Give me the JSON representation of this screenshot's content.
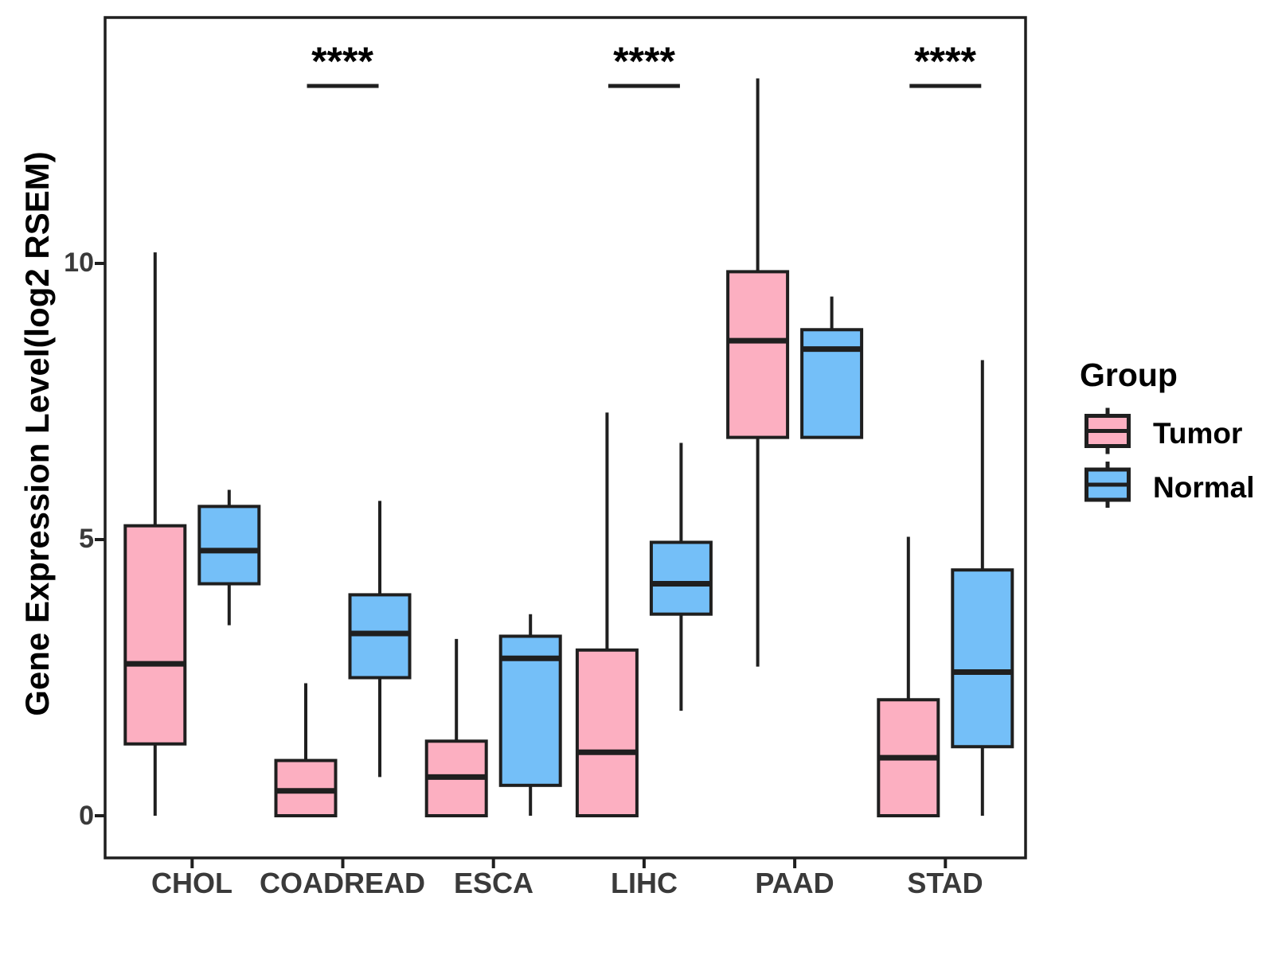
{
  "colors": {
    "tumor_fill": "#FCAFC1",
    "normal_fill": "#74BFF8",
    "line": "#1f1f1f",
    "tick_text": "#3a3a3a"
  },
  "chart_data": {
    "type": "boxplot",
    "title": "",
    "xlabel": "",
    "ylabel": "Gene Expression Level(log2 RSEM)",
    "categories": [
      "CHOL",
      "COADREAD",
      "ESCA",
      "LIHC",
      "PAAD",
      "STAD"
    ],
    "y_ticks": [
      0,
      5,
      10
    ],
    "ylim": [
      -0.8,
      14.5
    ],
    "grid": false,
    "legend": {
      "title": "Group",
      "position": "right",
      "entries": [
        {
          "label": "Tumor",
          "fill": "#FCAFC1"
        },
        {
          "label": "Normal",
          "fill": "#74BFF8"
        }
      ]
    },
    "significance_markers": [
      {
        "category": "COADREAD",
        "label": "****"
      },
      {
        "category": "LIHC",
        "label": "****"
      },
      {
        "category": "STAD",
        "label": "****"
      }
    ],
    "series": [
      {
        "name": "Tumor",
        "fill": "#FCAFC1",
        "boxes": [
          {
            "category": "CHOL",
            "whisker_low": 0.0,
            "q1": 1.3,
            "median": 2.75,
            "q3": 5.25,
            "whisker_high": 10.2
          },
          {
            "category": "COADREAD",
            "whisker_low": 0.0,
            "q1": 0.0,
            "median": 0.45,
            "q3": 1.0,
            "whisker_high": 2.4
          },
          {
            "category": "ESCA",
            "whisker_low": 0.0,
            "q1": 0.0,
            "median": 0.7,
            "q3": 1.35,
            "whisker_high": 3.2
          },
          {
            "category": "LIHC",
            "whisker_low": 0.0,
            "q1": 0.0,
            "median": 1.15,
            "q3": 3.0,
            "whisker_high": 7.3
          },
          {
            "category": "PAAD",
            "whisker_low": 2.7,
            "q1": 6.85,
            "median": 8.6,
            "q3": 9.85,
            "whisker_high": 13.35
          },
          {
            "category": "STAD",
            "whisker_low": 0.0,
            "q1": 0.0,
            "median": 1.05,
            "q3": 2.1,
            "whisker_high": 5.05
          }
        ]
      },
      {
        "name": "Normal",
        "fill": "#74BFF8",
        "boxes": [
          {
            "category": "CHOL",
            "whisker_low": 3.45,
            "q1": 4.2,
            "median": 4.8,
            "q3": 5.6,
            "whisker_high": 5.9
          },
          {
            "category": "COADREAD",
            "whisker_low": 0.7,
            "q1": 2.5,
            "median": 3.3,
            "q3": 4.0,
            "whisker_high": 5.7
          },
          {
            "category": "ESCA",
            "whisker_low": 0.0,
            "q1": 0.55,
            "median": 2.85,
            "q3": 3.25,
            "whisker_high": 3.65
          },
          {
            "category": "LIHC",
            "whisker_low": 1.9,
            "q1": 3.65,
            "median": 4.2,
            "q3": 4.95,
            "whisker_high": 6.75
          },
          {
            "category": "PAAD",
            "whisker_low": 6.85,
            "q1": 6.85,
            "median": 8.45,
            "q3": 8.8,
            "whisker_high": 9.4
          },
          {
            "category": "STAD",
            "whisker_low": 0.0,
            "q1": 1.25,
            "median": 2.6,
            "q3": 4.45,
            "whisker_high": 8.25
          }
        ]
      }
    ]
  }
}
